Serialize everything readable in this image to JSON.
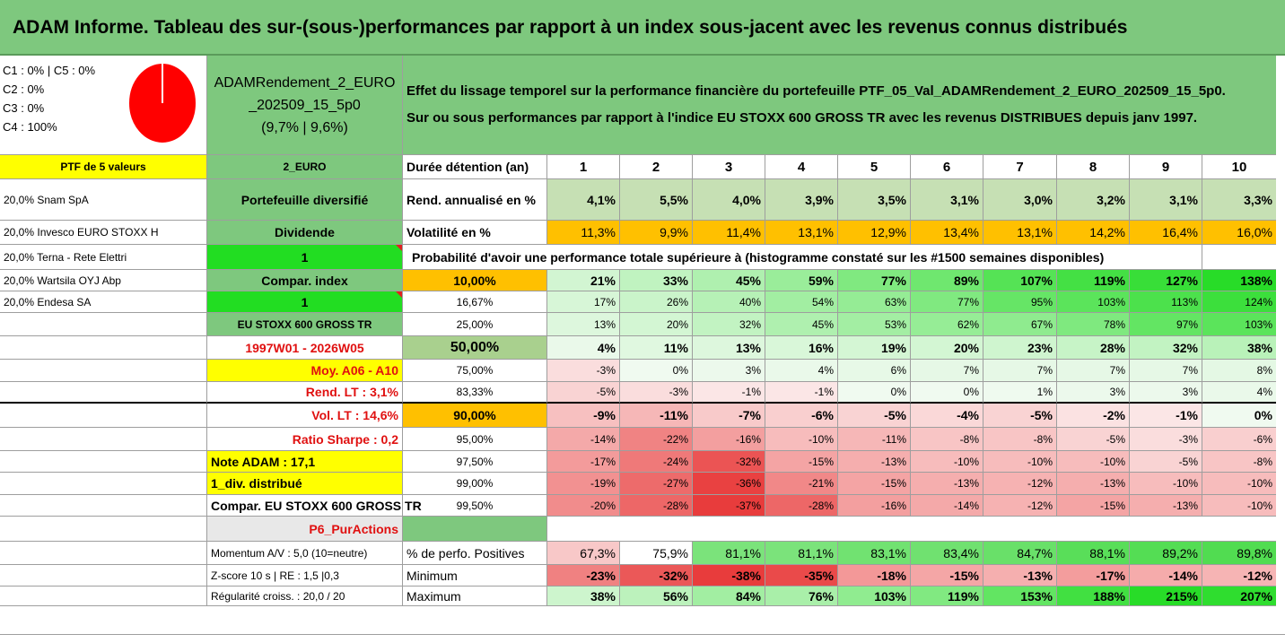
{
  "title": "ADAM Informe. Tableau des sur-(sous-)performances par rapport à un index sous-jacent avec les revenus connus distribués",
  "legend": {
    "lines": [
      "C1 : 0% | C5 : 0%",
      "C2 : 0%",
      "C3 : 0%",
      "C4 : 100%"
    ],
    "pie_color": "#ff0000"
  },
  "fund": {
    "name_line1": "ADAMRendement_2_EURO",
    "name_line2": "_202509_15_5p0",
    "name_line3": "(9,7% | 9,6%)"
  },
  "effect": {
    "line1": "Effet du lissage temporel sur la performance financière du portefeuille PTF_05_Val_ADAMRendement_2_EURO_202509_15_5p0.",
    "line2": "Sur ou sous performances par rapport à l'indice EU STOXX 600 GROSS TR avec les revenus DISTRIBUES depuis janv 1997."
  },
  "left": {
    "ptf_header": "PTF de 5 valeurs",
    "holdings": [
      "20,0% Snam SpA",
      "20,0% Invesco EURO STOXX H",
      "20,0% Terna - Rete Elettri",
      "20,0% Wartsila OYJ Abp",
      "20,0% Endesa SA"
    ],
    "momentum": "Momentum A/V : 5,0 (10=neutre)",
    "zscore": "Z-score 10 s | RE : 1,5 |0,3",
    "regularite": "Régularité croiss. : 20,0 / 20"
  },
  "middle": {
    "currency": "2_EURO",
    "portfolio_type": "Portefeuille diversifié",
    "dividend_label": "Dividende",
    "dividend_value": "1",
    "compar_label": "Compar. index",
    "compar_value": "1",
    "index_name": "EU STOXX 600 GROSS TR",
    "period": "1997W01 - 2026W05",
    "moy": "Moy. A06 - A10",
    "rend_lt": "Rend. LT : 3,1%",
    "vol_lt": "Vol. LT : 14,6%",
    "sharpe": "Ratio Sharpe : 0,2",
    "note": "Note ADAM : 17,1",
    "div_distrib": "1_div. distribué",
    "compar_full": "Compar. EU STOXX 600 GROSS TR",
    "p6": "P6_PurActions"
  },
  "table": {
    "duration_label": "Durée détention (an)",
    "years": [
      "1",
      "2",
      "3",
      "4",
      "5",
      "6",
      "7",
      "8",
      "9",
      "10"
    ],
    "rend_label": "Rend. annualisé en %",
    "rend": [
      "4,1%",
      "5,5%",
      "4,0%",
      "3,9%",
      "3,5%",
      "3,1%",
      "3,0%",
      "3,2%",
      "3,1%",
      "3,3%"
    ],
    "vol_label": "Volatilité en %",
    "vol": [
      "11,3%",
      "9,9%",
      "11,4%",
      "13,1%",
      "12,9%",
      "13,4%",
      "13,1%",
      "14,2%",
      "16,4%",
      "16,0%"
    ],
    "prob_header": "Probabilité d'avoir une performance totale supérieure à (histogramme constaté sur les #1500 semaines disponibles)",
    "prob_rows": [
      {
        "p": "10,00%",
        "v": [
          "21%",
          "33%",
          "45%",
          "59%",
          "77%",
          "89%",
          "107%",
          "119%",
          "127%",
          "138%"
        ]
      },
      {
        "p": "16,67%",
        "v": [
          "17%",
          "26%",
          "40%",
          "54%",
          "63%",
          "77%",
          "95%",
          "103%",
          "113%",
          "124%"
        ]
      },
      {
        "p": "25,00%",
        "v": [
          "13%",
          "20%",
          "32%",
          "45%",
          "53%",
          "62%",
          "67%",
          "78%",
          "97%",
          "103%"
        ]
      },
      {
        "p": "50,00%",
        "v": [
          "4%",
          "11%",
          "13%",
          "16%",
          "19%",
          "20%",
          "23%",
          "28%",
          "32%",
          "38%"
        ]
      },
      {
        "p": "75,00%",
        "v": [
          "-3%",
          "0%",
          "3%",
          "4%",
          "6%",
          "7%",
          "7%",
          "7%",
          "7%",
          "8%"
        ]
      },
      {
        "p": "83,33%",
        "v": [
          "-5%",
          "-3%",
          "-1%",
          "-1%",
          "0%",
          "0%",
          "1%",
          "3%",
          "3%",
          "4%"
        ]
      },
      {
        "p": "90,00%",
        "v": [
          "-9%",
          "-11%",
          "-7%",
          "-6%",
          "-5%",
          "-4%",
          "-5%",
          "-2%",
          "-1%",
          "0%"
        ]
      },
      {
        "p": "95,00%",
        "v": [
          "-14%",
          "-22%",
          "-16%",
          "-10%",
          "-11%",
          "-8%",
          "-8%",
          "-5%",
          "-3%",
          "-6%"
        ]
      },
      {
        "p": "97,50%",
        "v": [
          "-17%",
          "-24%",
          "-32%",
          "-15%",
          "-13%",
          "-10%",
          "-10%",
          "-10%",
          "-5%",
          "-8%"
        ]
      },
      {
        "p": "99,00%",
        "v": [
          "-19%",
          "-27%",
          "-36%",
          "-21%",
          "-15%",
          "-13%",
          "-12%",
          "-13%",
          "-10%",
          "-10%"
        ]
      },
      {
        "p": "99,50%",
        "v": [
          "-20%",
          "-28%",
          "-37%",
          "-28%",
          "-16%",
          "-14%",
          "-12%",
          "-15%",
          "-13%",
          "-10%"
        ]
      }
    ],
    "pos_label": "% de perfo. Positives",
    "pos": [
      "67,3%",
      "75,9%",
      "81,1%",
      "81,1%",
      "83,1%",
      "83,4%",
      "84,7%",
      "88,1%",
      "89,2%",
      "89,8%"
    ],
    "min_label": "Minimum",
    "min": [
      "-23%",
      "-32%",
      "-38%",
      "-35%",
      "-18%",
      "-15%",
      "-13%",
      "-17%",
      "-14%",
      "-12%"
    ],
    "max_label": "Maximum",
    "max": [
      "38%",
      "56%",
      "84%",
      "76%",
      "103%",
      "119%",
      "153%",
      "188%",
      "215%",
      "207%"
    ]
  }
}
